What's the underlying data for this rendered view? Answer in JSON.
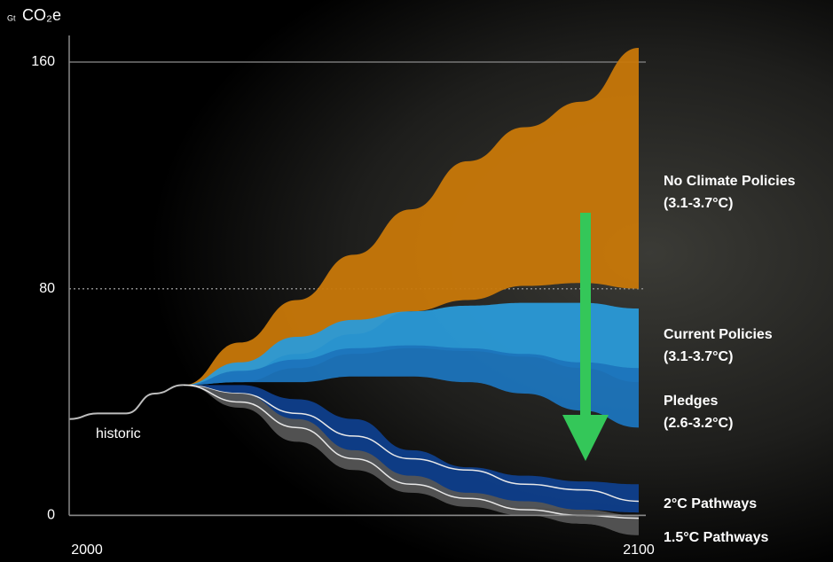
{
  "chart_data": {
    "type": "range-area",
    "y_unit_prefix": "Gt",
    "y_unit": "CO₂e",
    "x": [
      2020,
      2030,
      2040,
      2050,
      2060,
      2070,
      2080,
      2090,
      2100
    ],
    "xlim": [
      2000,
      2100
    ],
    "xticks": [
      2000,
      2100
    ],
    "ylim": [
      -8,
      170
    ],
    "yticks": [
      0,
      80,
      160
    ],
    "grid": true,
    "grid_line_styles": [
      "solid",
      "dotted",
      "solid"
    ],
    "historic": {
      "name": "historic",
      "color": "#bdbdbd",
      "x": [
        2000,
        2005,
        2010,
        2015,
        2020
      ],
      "values": [
        34,
        36,
        36,
        43,
        46
      ]
    },
    "series": [
      {
        "name": "No Climate Policies",
        "temperature": "(3.1-3.7°C)",
        "color": "#c8780a",
        "upper": [
          46,
          61,
          76,
          92,
          108,
          125,
          137,
          146,
          165
        ],
        "lower": [
          46,
          50,
          57,
          64,
          72,
          76,
          81,
          82,
          80
        ]
      },
      {
        "name": "Current Policies",
        "temperature": "(3.1-3.7°C)",
        "color": "#2a9ad8",
        "upper": [
          46,
          54,
          63,
          69,
          72,
          74,
          75,
          75,
          73
        ],
        "lower": [
          46,
          47,
          52,
          57,
          59,
          58,
          56,
          52,
          47
        ]
      },
      {
        "name": "Pledges",
        "temperature": "(2.6-3.2°C)",
        "color": "#1c74bc",
        "upper": [
          46,
          51,
          55,
          59,
          60,
          59,
          57,
          54,
          52
        ],
        "lower": [
          46,
          47,
          47,
          49,
          49,
          47,
          43,
          37,
          31
        ]
      },
      {
        "name": "2°C Pathways",
        "color": "#0f3f8c",
        "upper": [
          46,
          46,
          41,
          34,
          23,
          17,
          14,
          12,
          11
        ],
        "lower": [
          46,
          40,
          31,
          20,
          11,
          6,
          3,
          2,
          1
        ],
        "median": [
          46,
          43,
          36,
          28,
          20,
          16,
          11,
          9,
          5
        ]
      },
      {
        "name": "1.5°C Pathways",
        "color": "#555555",
        "upper": [
          46,
          43,
          34,
          23,
          14,
          8,
          5,
          2,
          0
        ],
        "lower": [
          46,
          38,
          26,
          16,
          8,
          3,
          0,
          -3,
          -7
        ],
        "median": [
          46,
          40,
          31,
          20,
          11,
          6,
          2,
          0,
          -1
        ]
      }
    ]
  }
}
